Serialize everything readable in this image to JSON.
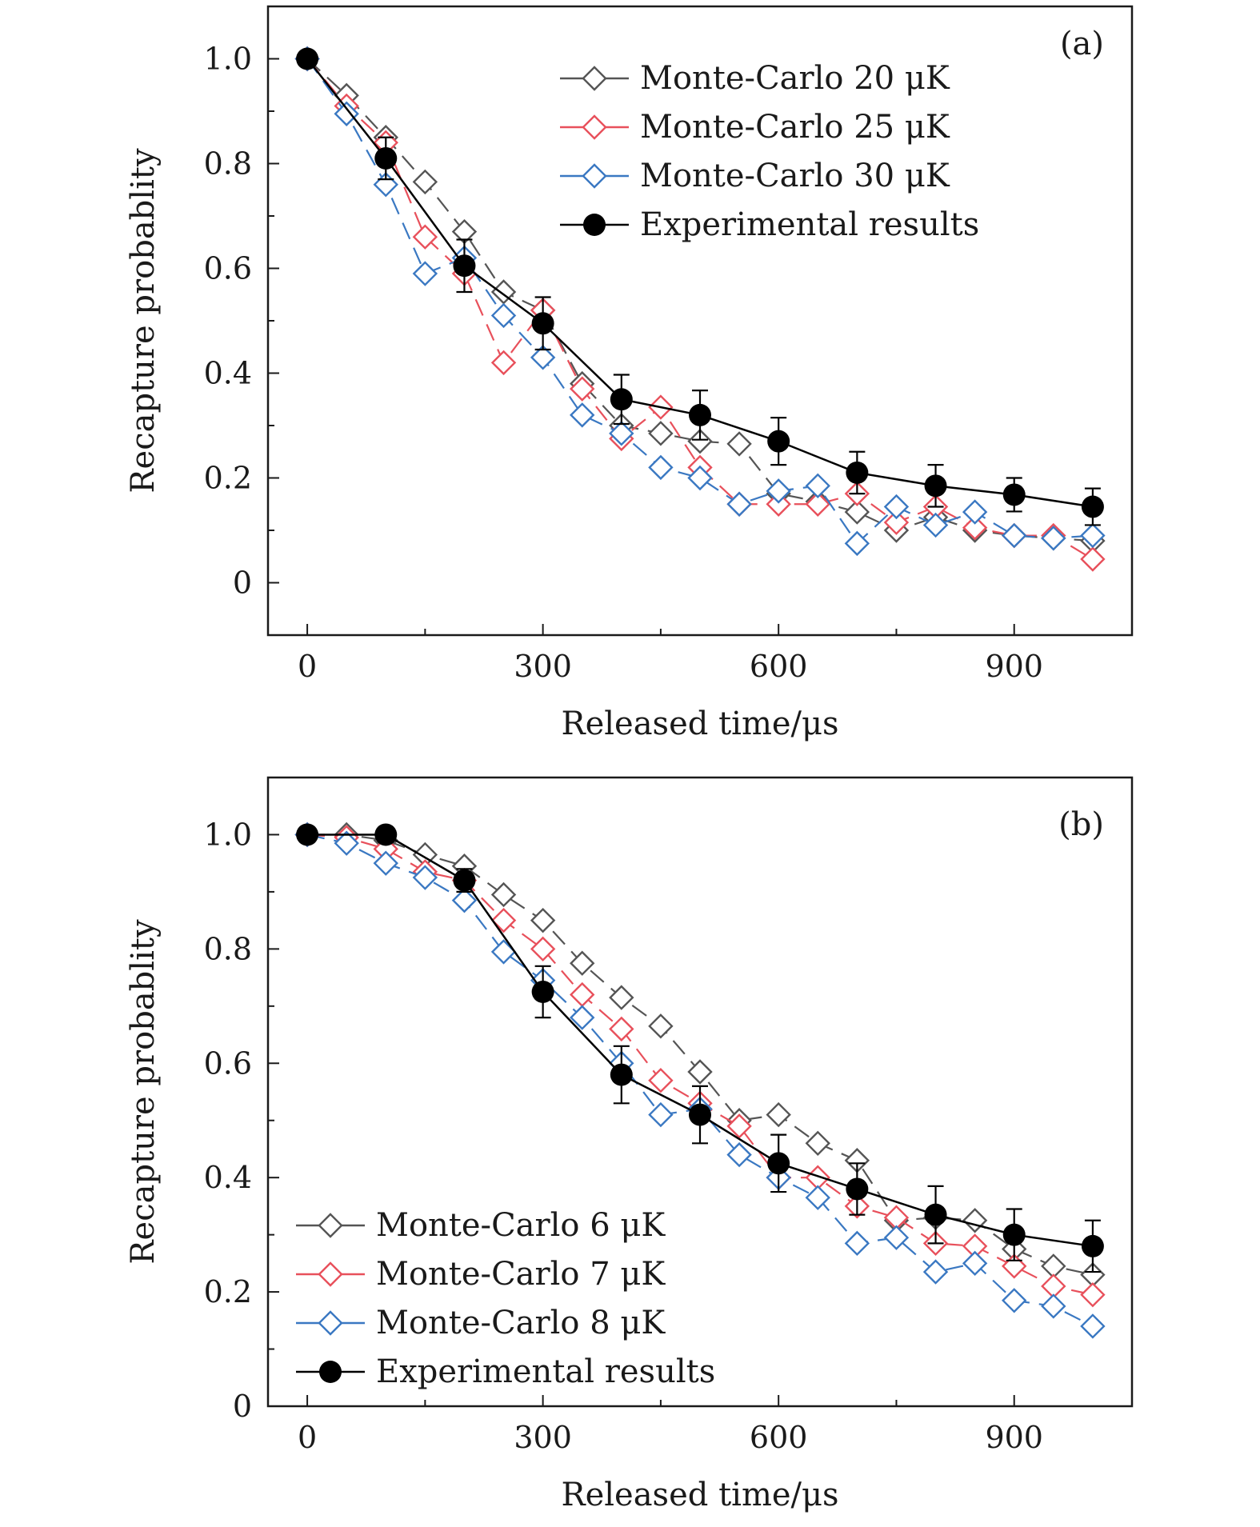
{
  "chart_data": [
    {
      "type": "line",
      "panel_label": "(a)",
      "xlabel": "Released time/μs",
      "ylabel": "Recapture probablity",
      "xlim": [
        -50,
        1050
      ],
      "ylim": [
        -0.1,
        1.1
      ],
      "xticks": [
        0,
        300,
        600,
        900
      ],
      "xtick_labels": [
        "0",
        "300",
        "600",
        "900"
      ],
      "yticks": [
        0,
        0.2,
        0.4,
        0.6,
        0.8,
        1.0
      ],
      "ytick_labels": [
        "0",
        "0.2",
        "0.4",
        "0.6",
        "0.8",
        "1.0"
      ],
      "legend_position": "top-right",
      "series": [
        {
          "name": "Monte-Carlo 20 μK",
          "color": "#555555",
          "marker": "open-diamond",
          "line": "dashed",
          "x": [
            0,
            50,
            100,
            150,
            200,
            250,
            300,
            350,
            400,
            450,
            500,
            550,
            600,
            650,
            700,
            750,
            800,
            850,
            900,
            950,
            1000
          ],
          "y": [
            1.0,
            0.93,
            0.85,
            0.765,
            0.67,
            0.555,
            0.52,
            0.38,
            0.3,
            0.285,
            0.27,
            0.265,
            0.17,
            0.155,
            0.135,
            0.1,
            0.125,
            0.1,
            0.09,
            0.085,
            0.08
          ]
        },
        {
          "name": "Monte-Carlo 25 μK",
          "color": "#e8505b",
          "marker": "open-diamond",
          "line": "dashed",
          "x": [
            0,
            50,
            100,
            150,
            200,
            250,
            300,
            350,
            400,
            450,
            500,
            550,
            600,
            650,
            700,
            750,
            800,
            850,
            900,
            950,
            1000
          ],
          "y": [
            1.0,
            0.91,
            0.84,
            0.66,
            0.59,
            0.42,
            0.52,
            0.37,
            0.275,
            0.335,
            0.22,
            0.15,
            0.15,
            0.15,
            0.17,
            0.115,
            0.145,
            0.105,
            0.09,
            0.09,
            0.045
          ]
        },
        {
          "name": "Monte-Carlo 30 μK",
          "color": "#3a78c2",
          "marker": "open-diamond",
          "line": "dashed",
          "x": [
            0,
            50,
            100,
            150,
            200,
            250,
            300,
            350,
            400,
            450,
            500,
            550,
            600,
            650,
            700,
            750,
            800,
            850,
            900,
            950,
            1000
          ],
          "y": [
            1.0,
            0.895,
            0.76,
            0.59,
            0.62,
            0.51,
            0.43,
            0.32,
            0.285,
            0.22,
            0.2,
            0.15,
            0.175,
            0.185,
            0.075,
            0.145,
            0.11,
            0.135,
            0.09,
            0.085,
            0.09
          ]
        },
        {
          "name": "Experimental results",
          "color": "#000000",
          "marker": "filled-circle",
          "line": "solid",
          "x": [
            0,
            100,
            200,
            300,
            400,
            500,
            600,
            700,
            800,
            900,
            1000
          ],
          "y": [
            1.0,
            0.81,
            0.605,
            0.495,
            0.35,
            0.32,
            0.27,
            0.21,
            0.185,
            0.168,
            0.145
          ],
          "err": [
            0,
            0.04,
            0.05,
            0.05,
            0.047,
            0.047,
            0.045,
            0.04,
            0.04,
            0.032,
            0.035
          ]
        }
      ]
    },
    {
      "type": "line",
      "panel_label": "(b)",
      "xlabel": "Released time/μs",
      "ylabel": "Recapture probablity",
      "xlim": [
        -50,
        1050
      ],
      "ylim": [
        0,
        1.1
      ],
      "xticks": [
        0,
        300,
        600,
        900
      ],
      "xtick_labels": [
        "0",
        "300",
        "600",
        "900"
      ],
      "yticks": [
        0,
        0.2,
        0.4,
        0.6,
        0.8,
        1.0
      ],
      "ytick_labels": [
        "0",
        "0.2",
        "0.4",
        "0.6",
        "0.8",
        "1.0"
      ],
      "legend_position": "bottom-left",
      "series": [
        {
          "name": "Monte-Carlo 6 μK",
          "color": "#555555",
          "marker": "open-diamond",
          "line": "dashed",
          "x": [
            0,
            50,
            100,
            150,
            200,
            250,
            300,
            350,
            400,
            450,
            500,
            550,
            600,
            650,
            700,
            750,
            800,
            850,
            900,
            950,
            1000
          ],
          "y": [
            1.0,
            1.0,
            0.99,
            0.965,
            0.945,
            0.895,
            0.85,
            0.775,
            0.715,
            0.665,
            0.585,
            0.5,
            0.51,
            0.46,
            0.43,
            0.325,
            0.33,
            0.325,
            0.275,
            0.245,
            0.23
          ]
        },
        {
          "name": "Monte-Carlo 7 μK",
          "color": "#e8505b",
          "marker": "open-diamond",
          "line": "dashed",
          "x": [
            0,
            50,
            100,
            150,
            200,
            250,
            300,
            350,
            400,
            450,
            500,
            550,
            600,
            650,
            700,
            750,
            800,
            850,
            900,
            950,
            1000
          ],
          "y": [
            1.0,
            0.995,
            0.975,
            0.935,
            0.92,
            0.85,
            0.8,
            0.72,
            0.66,
            0.57,
            0.53,
            0.49,
            0.4,
            0.4,
            0.35,
            0.33,
            0.285,
            0.28,
            0.245,
            0.21,
            0.195
          ]
        },
        {
          "name": "Monte-Carlo 8 μK",
          "color": "#3a78c2",
          "marker": "open-diamond",
          "line": "dashed",
          "x": [
            0,
            50,
            100,
            150,
            200,
            250,
            300,
            350,
            400,
            450,
            500,
            550,
            600,
            650,
            700,
            750,
            800,
            850,
            900,
            950,
            1000
          ],
          "y": [
            1.0,
            0.985,
            0.95,
            0.925,
            0.885,
            0.795,
            0.745,
            0.68,
            0.6,
            0.51,
            0.52,
            0.44,
            0.4,
            0.365,
            0.285,
            0.295,
            0.235,
            0.25,
            0.185,
            0.175,
            0.14
          ]
        },
        {
          "name": "Experimental results",
          "color": "#000000",
          "marker": "filled-circle",
          "line": "solid",
          "x": [
            0,
            100,
            200,
            300,
            400,
            500,
            600,
            700,
            800,
            900,
            1000
          ],
          "y": [
            1.0,
            1.0,
            0.92,
            0.725,
            0.58,
            0.51,
            0.425,
            0.38,
            0.335,
            0.3,
            0.28
          ],
          "err": [
            0,
            0,
            0.02,
            0.045,
            0.05,
            0.05,
            0.05,
            0.045,
            0.05,
            0.045,
            0.045
          ]
        }
      ]
    }
  ]
}
